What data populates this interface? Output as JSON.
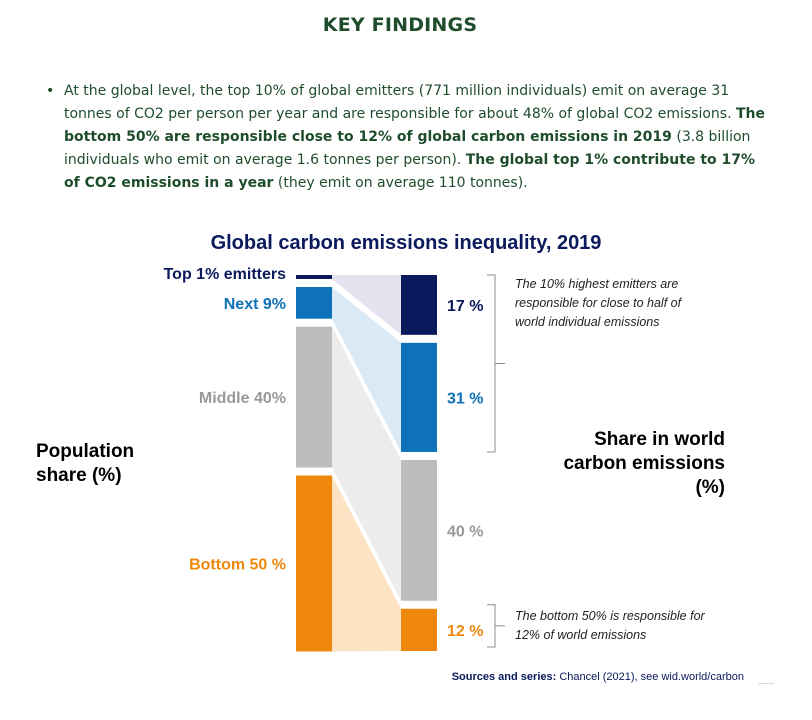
{
  "heading": "KEY FINDINGS",
  "findings": {
    "bullet": "•",
    "part1": "At the global level, the top 10% of global emitters (771 million individuals) emit on average 31 tonnes of CO2 per person per year and are responsible for about 48% of global CO2 emissions. ",
    "part2": "The bottom 50% are responsible close to 12% of global carbon emissions in 2019",
    "part3": " (3.8 billion individuals who emit on average 1.6 tonnes per person). ",
    "part4": "The global top 1% contribute to 17% of CO2 emissions in a year",
    "part5": " (they emit on average 110 tonnes)."
  },
  "chart_data": {
    "type": "bar",
    "title": "Global carbon emissions inequality, 2019",
    "left_axis_label": [
      "Population",
      "share (%)"
    ],
    "right_axis_label": [
      "Share in world",
      "carbon emissions",
      "(%)"
    ],
    "categories": [
      "Top 1% emitters",
      "Next 9%",
      "Middle 40%",
      "Bottom 50 %"
    ],
    "population_share": [
      1,
      9,
      40,
      50
    ],
    "emission_share": [
      17,
      31,
      40,
      12
    ],
    "emission_labels": [
      "17 %",
      "31 %",
      "40 %",
      "12 %"
    ],
    "colors": [
      "#0b1a5c",
      "#0d72b7",
      "#bdbdbd",
      "#f0870d"
    ],
    "band_colors": [
      "#e4e2ef",
      "#d9e9f5",
      "#ececec",
      "#fbe3c4"
    ],
    "annotations": [
      [
        "The 10% highest emitters are",
        "responsible for close to half of",
        "world individual emissions"
      ],
      [
        "The bottom 50% is responsible for",
        "12% of world emissions"
      ]
    ],
    "source_bold": "Sources and series:",
    "source_text": " Chancel (2021), see wid.world/carbon"
  }
}
